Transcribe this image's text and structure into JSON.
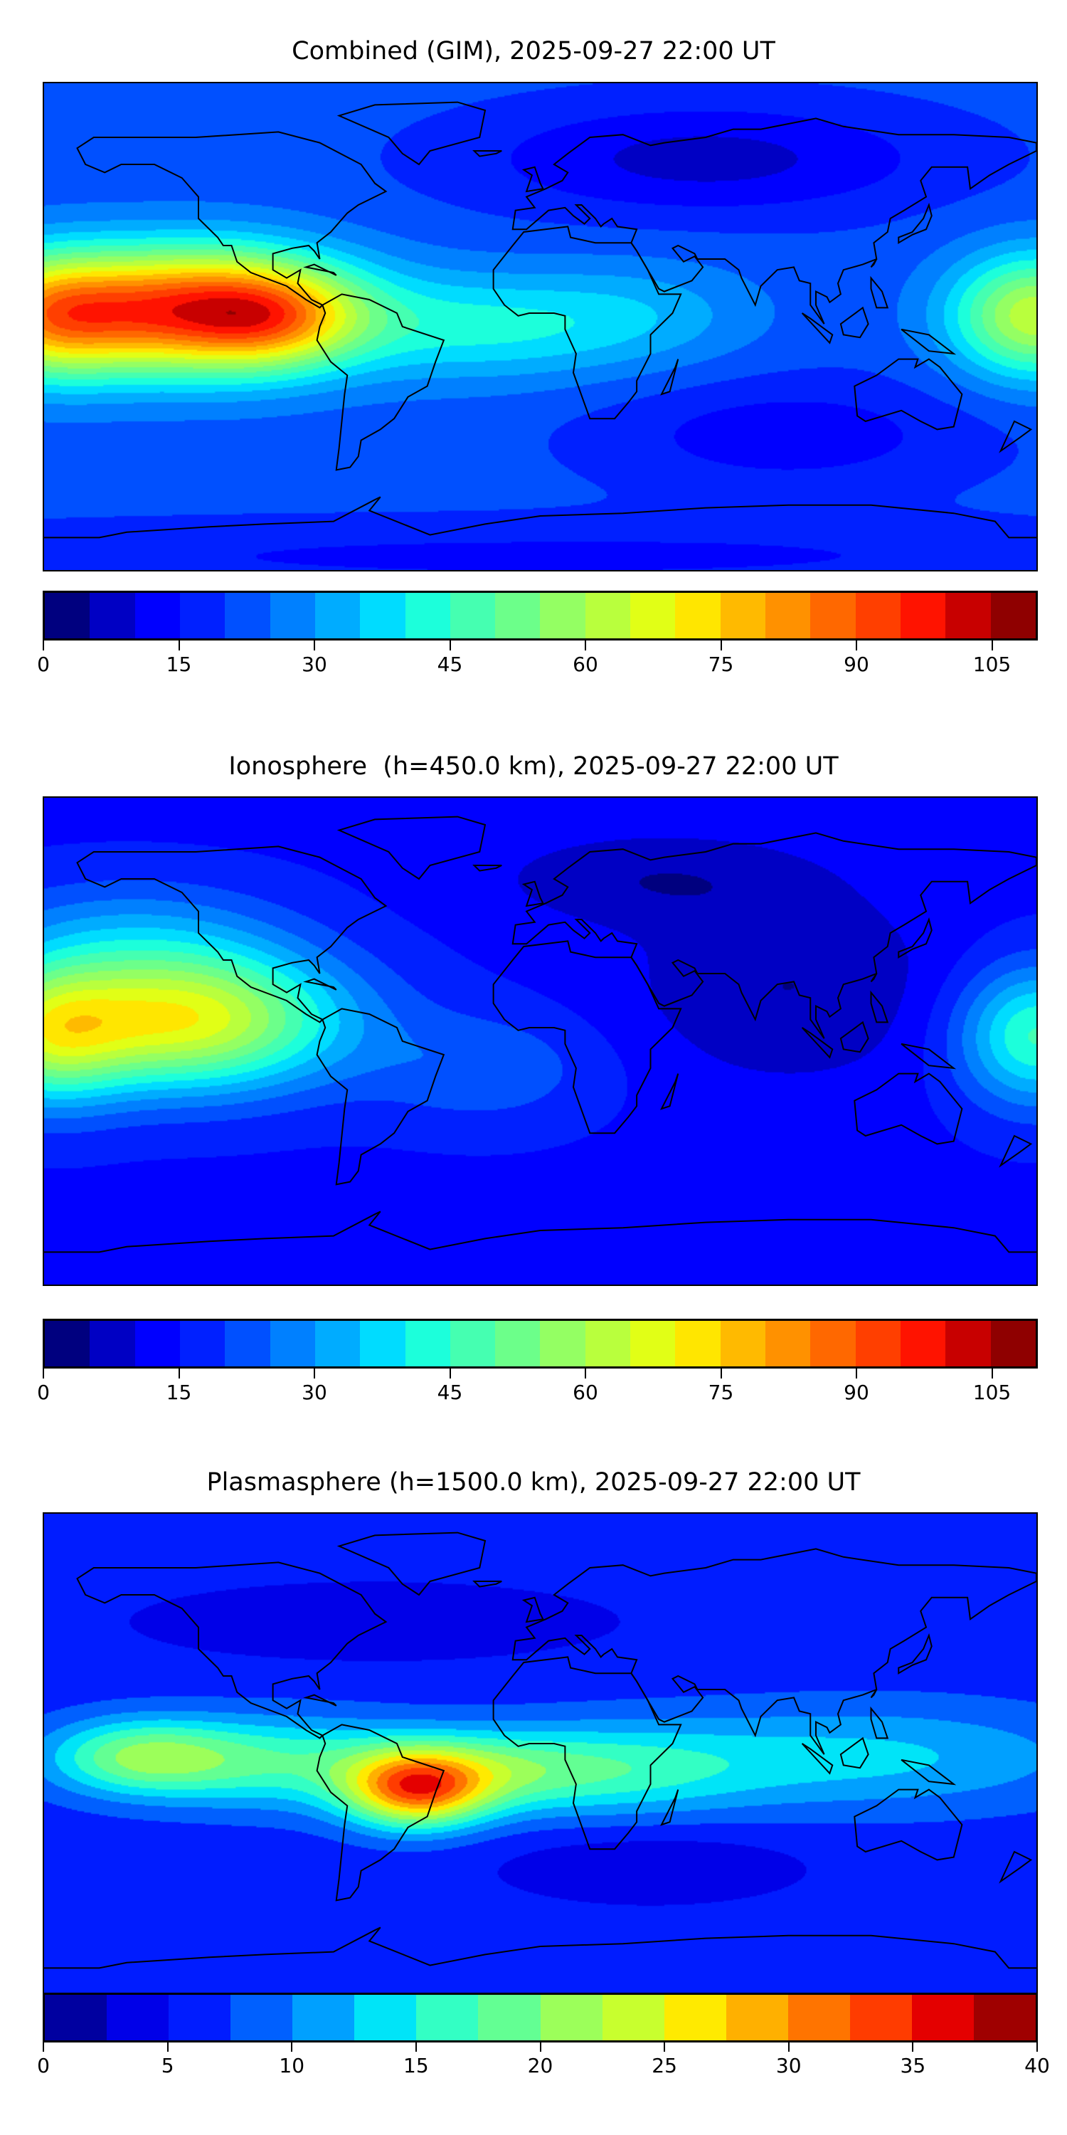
{
  "chart_data": [
    {
      "type": "heatmap",
      "title": "Combined (GIM), 2025-09-27 22:00 UT",
      "projection": "equirectangular",
      "lon_range": [
        -180,
        180
      ],
      "lat_range": [
        -90,
        90
      ],
      "colorbar": {
        "range": [
          0,
          110
        ],
        "step": 5,
        "ticks": [
          "0",
          "15",
          "30",
          "45",
          "60",
          "75",
          "90",
          "105"
        ],
        "tick_values": [
          0,
          15,
          30,
          45,
          60,
          75,
          90,
          105
        ],
        "colors": [
          "#00007f",
          "#0000c4",
          "#0000ff",
          "#0020ff",
          "#0050ff",
          "#0080ff",
          "#00acff",
          "#00dcff",
          "#1cffdb",
          "#45ffb1",
          "#6cff8a",
          "#94ff63",
          "#b9ff3d",
          "#e1ff16",
          "#ffe600",
          "#ffba00",
          "#ff9100",
          "#ff6800",
          "#ff3f00",
          "#ff1300",
          "#c80000",
          "#8f0000"
        ]
      },
      "field": {
        "base": 22,
        "features": [
          {
            "lon": -125,
            "lat": 6,
            "amp": 72,
            "slon": 38,
            "slat": 16
          },
          {
            "lon": -95,
            "lat": 3,
            "amp": 20,
            "slon": 20,
            "slat": 12
          },
          {
            "lon": 180,
            "lat": 4,
            "amp": 42,
            "slon": 22,
            "slat": 16
          },
          {
            "lon": -180,
            "lat": 4,
            "amp": 42,
            "slon": 22,
            "slat": 16
          },
          {
            "lon": -20,
            "lat": 0,
            "amp": 18,
            "slon": 40,
            "slat": 14
          },
          {
            "lon": 40,
            "lat": 5,
            "amp": 8,
            "slon": 30,
            "slat": 14
          },
          {
            "lon": 60,
            "lat": 62,
            "amp": -14,
            "slon": 60,
            "slat": 15
          },
          {
            "lon": 90,
            "lat": -40,
            "amp": -10,
            "slon": 50,
            "slat": 15
          },
          {
            "lon": 0,
            "lat": -85,
            "amp": -8,
            "slon": 200,
            "slat": 10
          }
        ]
      }
    },
    {
      "type": "heatmap",
      "title": "Ionosphere  (h=450.0 km), 2025-09-27 22:00 UT",
      "projection": "equirectangular",
      "lon_range": [
        -180,
        180
      ],
      "lat_range": [
        -90,
        90
      ],
      "colorbar": {
        "range": [
          0,
          110
        ],
        "step": 5,
        "ticks": [
          "0",
          "15",
          "30",
          "45",
          "60",
          "75",
          "90",
          "105"
        ],
        "tick_values": [
          0,
          15,
          30,
          45,
          60,
          75,
          90,
          105
        ],
        "colors": [
          "#00007f",
          "#0000c4",
          "#0000ff",
          "#0020ff",
          "#0050ff",
          "#0080ff",
          "#00acff",
          "#00dcff",
          "#1cffdb",
          "#45ffb1",
          "#6cff8a",
          "#94ff63",
          "#b9ff3d",
          "#e1ff16",
          "#ffe600",
          "#ffba00",
          "#ff9100",
          "#ff6800",
          "#ff3f00",
          "#ff1300",
          "#c80000",
          "#8f0000"
        ]
      },
      "field": {
        "base": 14,
        "features": [
          {
            "lon": -130,
            "lat": 8,
            "amp": 55,
            "slon": 40,
            "slat": 18
          },
          {
            "lon": -150,
            "lat": 40,
            "amp": 12,
            "slon": 40,
            "slat": 15
          },
          {
            "lon": 180,
            "lat": 2,
            "amp": 32,
            "slon": 20,
            "slat": 18
          },
          {
            "lon": -180,
            "lat": 2,
            "amp": 32,
            "slon": 20,
            "slat": 18
          },
          {
            "lon": -20,
            "lat": -10,
            "amp": 10,
            "slon": 30,
            "slat": 15
          },
          {
            "lon": 90,
            "lat": 20,
            "amp": -9,
            "slon": 40,
            "slat": 25
          },
          {
            "lon": 40,
            "lat": 60,
            "amp": -8,
            "slon": 40,
            "slat": 12
          }
        ]
      }
    },
    {
      "type": "heatmap",
      "title": "Plasmasphere (h=1500.0 km), 2025-09-27 22:00 UT",
      "projection": "equirectangular",
      "lon_range": [
        -180,
        180
      ],
      "lat_range": [
        -90,
        90
      ],
      "colorbar": {
        "range": [
          0,
          40
        ],
        "step": 2.5,
        "ticks": [
          "0",
          "5",
          "10",
          "15",
          "20",
          "25",
          "30",
          "35",
          "40"
        ],
        "tick_values": [
          0,
          5,
          10,
          15,
          20,
          25,
          30,
          35,
          40
        ],
        "colors": [
          "#0000a0",
          "#0000e8",
          "#001cff",
          "#0060ff",
          "#00a0ff",
          "#00e4f8",
          "#33ffc4",
          "#63ff93",
          "#9cff5a",
          "#c8ff2e",
          "#ffea00",
          "#ffb000",
          "#ff7400",
          "#ff3c00",
          "#e40000",
          "#9f0000"
        ]
      },
      "field": {
        "base": 6,
        "features": [
          {
            "lon": -45,
            "lat": -12,
            "amp": 22,
            "slon": 18,
            "slat": 10
          },
          {
            "lon": -20,
            "lat": -5,
            "amp": 6,
            "slon": 25,
            "slat": 10
          },
          {
            "lon": -145,
            "lat": 0,
            "amp": 13,
            "slon": 25,
            "slat": 10
          },
          {
            "lon": -90,
            "lat": -2,
            "amp": 10,
            "slon": 35,
            "slat": 12
          },
          {
            "lon": 20,
            "lat": -5,
            "amp": 9,
            "slon": 40,
            "slat": 12
          },
          {
            "lon": 120,
            "lat": 0,
            "amp": 7,
            "slon": 60,
            "slat": 14
          },
          {
            "lon": -60,
            "lat": 50,
            "amp": -3,
            "slon": 60,
            "slat": 10
          },
          {
            "lon": 40,
            "lat": -40,
            "amp": -3,
            "slon": 40,
            "slat": 10
          }
        ]
      }
    }
  ]
}
